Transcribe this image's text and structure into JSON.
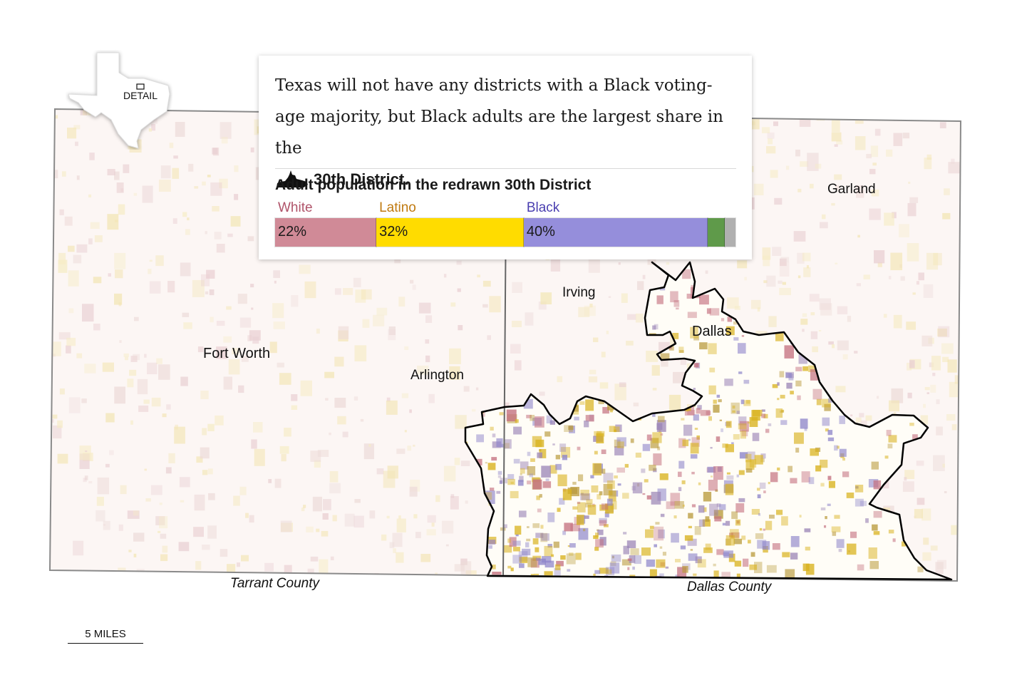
{
  "map": {
    "inset_label": "DETAIL",
    "cities": {
      "fort_worth": "Fort Worth",
      "arlington": "Arlington",
      "irving": "Irving",
      "dallas": "Dallas",
      "garland": "Garland"
    },
    "counties": {
      "tarrant": "Tarrant County",
      "dallas": "Dallas County"
    },
    "scale_label": "5 MILES",
    "colors": {
      "white": "#c4707f",
      "latino": "#d9b21e",
      "black": "#8d84c9",
      "asian": "#5a8e44",
      "other": "#a9a9a9",
      "district_outline": "#000000",
      "county_outline": "#808080"
    }
  },
  "card": {
    "headline": "Texas will not have any districts with a Black voting-age majority, but Black adults are the largest share in the",
    "district_ref": "30th District",
    "district_ref_suffix": ".",
    "chart_title": "Adult population in the redrawn 30th District"
  },
  "chart_data": {
    "type": "bar",
    "title": "Adult population in the redrawn 30th District",
    "orientation": "stacked-horizontal",
    "unit": "%",
    "series": [
      {
        "name": "White",
        "value": 22,
        "label": "22%",
        "color": "#d08a97",
        "label_color": "#b0546a"
      },
      {
        "name": "Latino",
        "value": 32,
        "label": "32%",
        "color": "#ffdc00",
        "label_color": "#c07a10"
      },
      {
        "name": "Black",
        "value": 40,
        "label": "40%",
        "color": "#958edb",
        "label_color": "#4a3fb0"
      },
      {
        "value": 3.7,
        "label": "",
        "color": "#5f9a4a"
      },
      {
        "value": 2.3,
        "label": "",
        "color": "#b0b0b0"
      }
    ]
  }
}
